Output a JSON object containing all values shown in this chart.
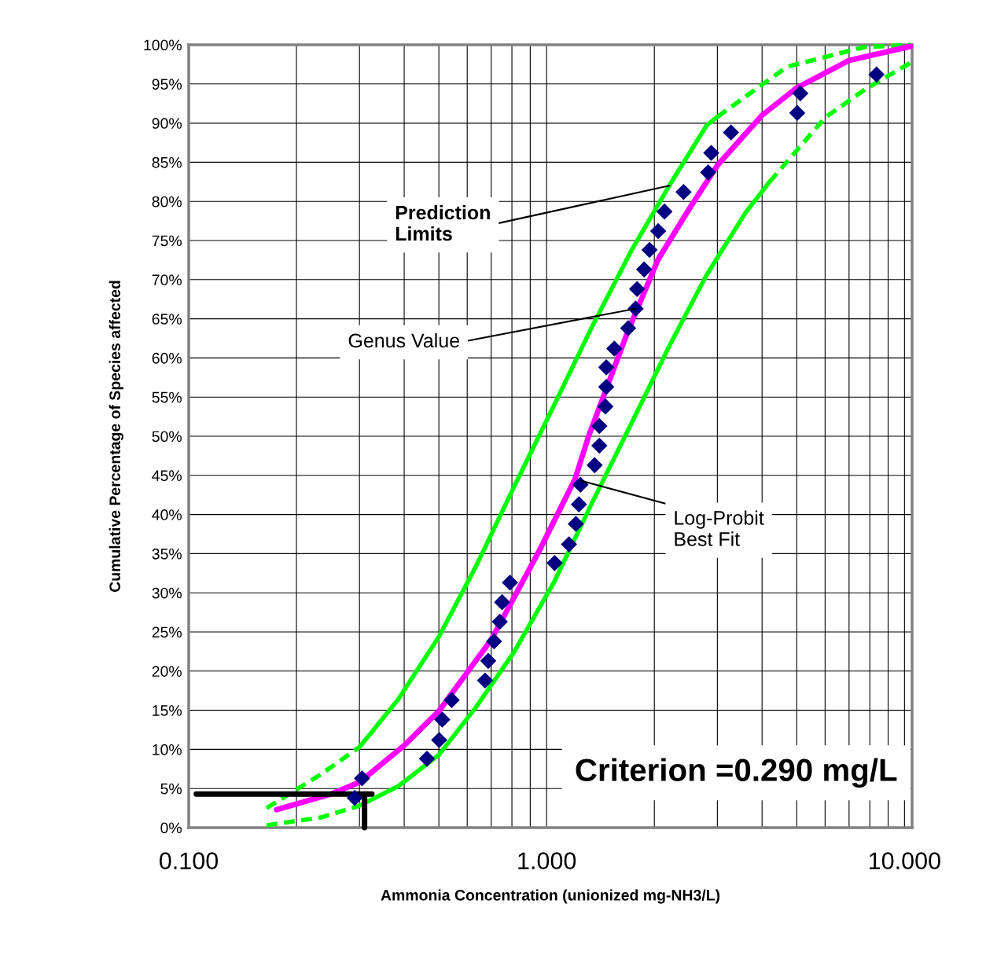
{
  "chart_data": {
    "type": "line",
    "xlabel": "Ammonia Concentration (unionized mg-NH3/L)",
    "ylabel": "Cumulative Percentage of Species affected",
    "log": "x",
    "grid": true,
    "xlim": [
      0.1,
      10.5
    ],
    "ylim": [
      0,
      100
    ],
    "xticks": [
      {
        "value": 0.1,
        "label": "0.100"
      },
      {
        "value": 1,
        "label": "1.000"
      },
      {
        "value": 10,
        "label": "10.000"
      }
    ],
    "yticks": [
      {
        "value": 0,
        "label": "0%"
      },
      {
        "value": 5,
        "label": "5%"
      },
      {
        "value": 10,
        "label": "10%"
      },
      {
        "value": 15,
        "label": "15%"
      },
      {
        "value": 20,
        "label": "20%"
      },
      {
        "value": 25,
        "label": "25%"
      },
      {
        "value": 30,
        "label": "30%"
      },
      {
        "value": 35,
        "label": "35%"
      },
      {
        "value": 40,
        "label": "40%"
      },
      {
        "value": 45,
        "label": "45%"
      },
      {
        "value": 50,
        "label": "50%"
      },
      {
        "value": 55,
        "label": "55%"
      },
      {
        "value": 60,
        "label": "60%"
      },
      {
        "value": 65,
        "label": "65%"
      },
      {
        "value": 70,
        "label": "70%"
      },
      {
        "value": 75,
        "label": "75%"
      },
      {
        "value": 80,
        "label": "80%"
      },
      {
        "value": 85,
        "label": "85%"
      },
      {
        "value": 90,
        "label": "90%"
      },
      {
        "value": 95,
        "label": "95%"
      },
      {
        "value": 100,
        "label": "100%"
      }
    ],
    "series": [
      {
        "color": "#00ff00",
        "line_style": "dashed",
        "x": [
          0.165,
          0.234,
          0.3
        ],
        "values": [
          2.5,
          6.8,
          10.3
        ]
      },
      {
        "color": "#00ff00",
        "line_style": "solid",
        "x": [
          0.3,
          0.385,
          0.5,
          0.635,
          0.81,
          1.05,
          1.34,
          1.72,
          2.2,
          2.8,
          3.0
        ],
        "values": [
          10.3,
          16.4,
          24.4,
          33.4,
          43.5,
          54,
          64,
          73.6,
          82,
          89.7,
          90.8
        ]
      },
      {
        "color": "#00ff00",
        "line_style": "dashed",
        "x": [
          3.0,
          4.7,
          7.7,
          10.4
        ],
        "values": [
          90.8,
          97.2,
          99.7,
          100
        ]
      },
      {
        "color": "#00ff00",
        "line_style": "dashed",
        "x": [
          0.165,
          0.234,
          0.3
        ],
        "values": [
          0.3,
          1.3,
          2.8
        ]
      },
      {
        "color": "#00ff00",
        "line_style": "solid",
        "x": [
          0.3,
          0.385,
          0.5,
          0.635,
          0.81,
          1.05,
          1.34,
          1.72,
          2.2,
          2.8,
          3.6,
          4.2
        ],
        "values": [
          2.8,
          5.3,
          9.3,
          15.4,
          22.4,
          31.4,
          41.5,
          51.5,
          61.5,
          70.6,
          78.6,
          82.5
        ]
      },
      {
        "color": "#00ff00",
        "line_style": "dashed",
        "x": [
          4.2,
          6.0,
          7.7,
          10.4
        ],
        "values": [
          82.5,
          90.7,
          94.2,
          97.7
        ]
      },
      {
        "color": "#ff00ff",
        "line_style": "solid",
        "x": [
          0.176,
          0.25,
          0.3,
          0.4,
          0.5,
          0.7,
          0.955,
          1.2,
          1.31,
          1.69,
          2.05,
          2.5,
          3.0,
          4.0,
          5.0,
          7.0,
          10.4
        ],
        "values": [
          2.3,
          4.3,
          5.8,
          10.5,
          14.9,
          24,
          35.4,
          44.5,
          50,
          63.5,
          72.6,
          79,
          84.6,
          91,
          94.5,
          98,
          99.8
        ]
      },
      {
        "color": "#000000",
        "line_style": "solid",
        "x": [
          0.105,
          0.325
        ],
        "values": [
          4.3,
          4.3
        ]
      },
      {
        "color": "#000000",
        "line_style": "solid",
        "x": [
          0.31,
          0.31
        ],
        "values": [
          4.3,
          0
        ]
      },
      {
        "type": "scatter",
        "marker": "diamond",
        "color": "#000080",
        "x": [
          0.305,
          0.291,
          0.463,
          0.501,
          0.511,
          0.543,
          0.673,
          0.687,
          0.713,
          0.74,
          0.751,
          0.79,
          1.053,
          1.155,
          1.207,
          1.231,
          1.243,
          1.362,
          1.404,
          1.404,
          1.46,
          1.468,
          1.468,
          1.546,
          1.69,
          1.773,
          1.79,
          1.873,
          1.939,
          2.05,
          2.135,
          2.414,
          2.827,
          2.884,
          3.275,
          5.016,
          5.117,
          8.35
        ],
        "values": [
          6.3,
          3.8,
          8.8,
          11.2,
          13.8,
          16.3,
          18.8,
          21.3,
          23.8,
          26.3,
          28.8,
          31.3,
          33.8,
          36.2,
          38.8,
          41.3,
          43.8,
          46.3,
          48.8,
          51.3,
          53.8,
          56.3,
          58.8,
          61.2,
          63.8,
          66.3,
          68.8,
          71.3,
          73.8,
          76.2,
          78.7,
          81.2,
          83.7,
          86.2,
          88.8,
          91.3,
          93.8,
          96.2
        ]
      }
    ],
    "annotations": [
      {
        "text": "Prediction\nLimits",
        "x": 2.2,
        "y": 82
      },
      {
        "text": "Genus Value",
        "x": 1.773,
        "y": 66.3
      },
      {
        "text": "Log-Probit\nBest Fit",
        "x": 1.25,
        "y": 44.3
      },
      "Criterion =0.290 mg/L"
    ]
  }
}
